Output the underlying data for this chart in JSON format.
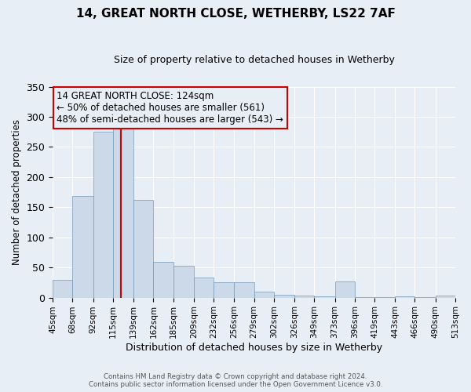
{
  "title": "14, GREAT NORTH CLOSE, WETHERBY, LS22 7AF",
  "subtitle": "Size of property relative to detached houses in Wetherby",
  "xlabel": "Distribution of detached houses by size in Wetherby",
  "ylabel": "Number of detached properties",
  "bar_color": "#ccd9e8",
  "bar_edge_color": "#7799bb",
  "background_color": "#e8eef5",
  "grid_color": "#ffffff",
  "vline_x": 124,
  "vline_color": "#cc0000",
  "annotation_title": "14 GREAT NORTH CLOSE: 124sqm",
  "annotation_line1": "← 50% of detached houses are smaller (561)",
  "annotation_line2": "48% of semi-detached houses are larger (543) →",
  "annotation_box_color": "#cc0000",
  "bins": [
    45,
    68,
    92,
    115,
    139,
    162,
    185,
    209,
    232,
    256,
    279,
    302,
    326,
    349,
    373,
    396,
    419,
    443,
    466,
    490,
    513
  ],
  "counts": [
    29,
    168,
    275,
    288,
    162,
    59,
    53,
    33,
    25,
    25,
    10,
    5,
    4,
    2,
    27,
    1,
    1,
    2,
    1,
    3
  ],
  "ylim": [
    0,
    350
  ],
  "yticks": [
    0,
    50,
    100,
    150,
    200,
    250,
    300,
    350
  ],
  "footer_line1": "Contains HM Land Registry data © Crown copyright and database right 2024.",
  "footer_line2": "Contains public sector information licensed under the Open Government Licence v3.0."
}
